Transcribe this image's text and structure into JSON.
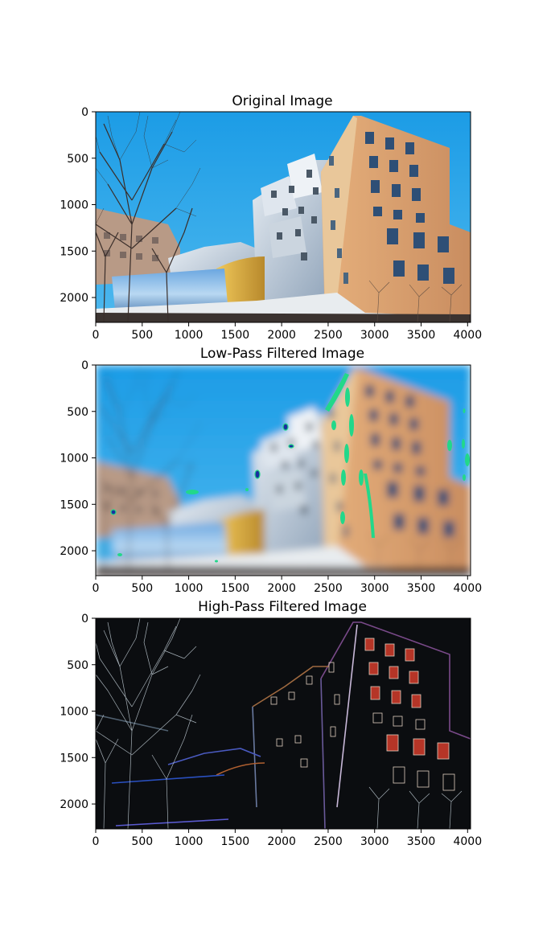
{
  "panels": [
    {
      "title": "Original Image",
      "xticks": [
        "0",
        "500",
        "1000",
        "1500",
        "2000",
        "2500",
        "3000",
        "3500",
        "4000"
      ],
      "yticks": [
        "0",
        "500",
        "1000",
        "1500",
        "2000"
      ]
    },
    {
      "title": "Low-Pass Filtered Image",
      "xticks": [
        "0",
        "500",
        "1000",
        "1500",
        "2000",
        "2500",
        "3000",
        "3500",
        "4000"
      ],
      "yticks": [
        "0",
        "500",
        "1000",
        "1500",
        "2000"
      ]
    },
    {
      "title": "High-Pass Filtered Image",
      "xticks": [
        "0",
        "500",
        "1000",
        "1500",
        "2000",
        "2500",
        "3000",
        "3500",
        "4000"
      ],
      "yticks": [
        "0",
        "500",
        "1000",
        "1500",
        "2000"
      ]
    }
  ],
  "colors": {
    "sky": "#2aa6e8",
    "facade": "#d9a070",
    "steel": "#c9d4e0",
    "gold": "#d9b040",
    "highlight_green": "#22d88a",
    "highpass_bg": "#0b0d10"
  }
}
